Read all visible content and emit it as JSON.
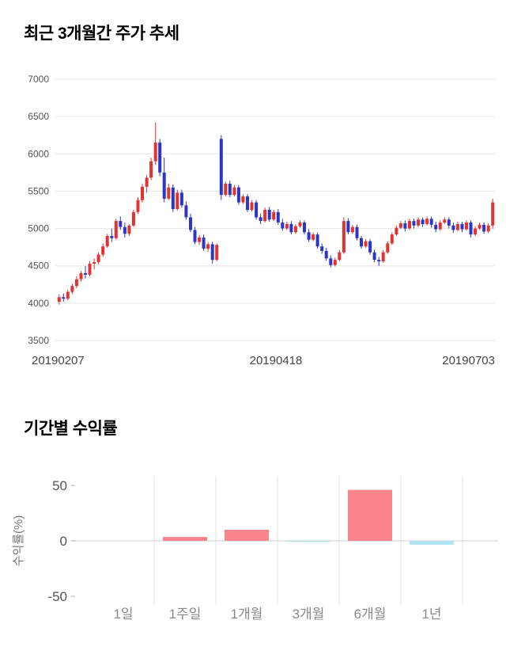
{
  "sections": [
    {
      "title": "최근 3개월간 주가 추세"
    },
    {
      "title": "기간별 수익률"
    }
  ],
  "chart_data": [
    {
      "type": "candlestick",
      "title": "최근 3개월간 주가 추세",
      "ylim": [
        3500,
        7000
      ],
      "yticks": [
        7000,
        6500,
        6000,
        5500,
        5000,
        4500,
        4000,
        3500
      ],
      "x_tick_labels": [
        "20190207",
        "20190418",
        "20190703"
      ],
      "grid": "horizontal",
      "colors": {
        "up": "#e03333",
        "down": "#2d35c4",
        "grid": "#e6e6e6",
        "axis_text": "#555555",
        "x_label_text": "#444444"
      },
      "candles": [
        [
          4020,
          4120,
          3980,
          4080
        ],
        [
          4080,
          4130,
          4020,
          4060
        ],
        [
          4060,
          4180,
          4040,
          4150
        ],
        [
          4150,
          4260,
          4120,
          4230
        ],
        [
          4230,
          4360,
          4200,
          4320
        ],
        [
          4320,
          4430,
          4290,
          4400
        ],
        [
          4400,
          4500,
          4330,
          4380
        ],
        [
          4380,
          4560,
          4360,
          4530
        ],
        [
          4530,
          4600,
          4450,
          4550
        ],
        [
          4550,
          4680,
          4520,
          4650
        ],
        [
          4650,
          4800,
          4620,
          4760
        ],
        [
          4760,
          4930,
          4740,
          4900
        ],
        [
          4900,
          5000,
          4820,
          4870
        ],
        [
          4870,
          5130,
          4850,
          5100
        ],
        [
          5100,
          5160,
          4980,
          5020
        ],
        [
          5020,
          5080,
          4880,
          4930
        ],
        [
          4930,
          5060,
          4900,
          5040
        ],
        [
          5040,
          5250,
          5020,
          5220
        ],
        [
          5220,
          5420,
          5200,
          5380
        ],
        [
          5380,
          5600,
          5350,
          5560
        ],
        [
          5560,
          5720,
          5480,
          5680
        ],
        [
          5680,
          5950,
          5650,
          5900
        ],
        [
          5900,
          6420,
          5850,
          6150
        ],
        [
          6150,
          6200,
          5700,
          5750
        ],
        [
          5750,
          5950,
          5350,
          5400
        ],
        [
          5400,
          5600,
          5380,
          5550
        ],
        [
          5550,
          5590,
          5220,
          5260
        ],
        [
          5260,
          5520,
          5240,
          5480
        ],
        [
          5480,
          5520,
          5280,
          5310
        ],
        [
          5310,
          5360,
          5120,
          5150
        ],
        [
          5150,
          5200,
          4950,
          4980
        ],
        [
          4980,
          5020,
          4790,
          4820
        ],
        [
          4820,
          4910,
          4780,
          4880
        ],
        [
          4880,
          4920,
          4700,
          4730
        ],
        [
          4730,
          4820,
          4690,
          4790
        ],
        [
          4790,
          4820,
          4530,
          4580
        ],
        [
          4580,
          4800,
          4560,
          4780
        ],
        [
          6200,
          6250,
          5380,
          5450
        ],
        [
          5450,
          5630,
          5430,
          5600
        ],
        [
          5600,
          5640,
          5420,
          5450
        ],
        [
          5450,
          5580,
          5430,
          5550
        ],
        [
          5550,
          5580,
          5320,
          5350
        ],
        [
          5350,
          5460,
          5330,
          5430
        ],
        [
          5430,
          5460,
          5220,
          5250
        ],
        [
          5250,
          5380,
          5230,
          5350
        ],
        [
          5350,
          5380,
          5120,
          5150
        ],
        [
          5150,
          5200,
          5060,
          5100
        ],
        [
          5100,
          5280,
          5080,
          5250
        ],
        [
          5250,
          5290,
          5090,
          5120
        ],
        [
          5120,
          5250,
          5100,
          5220
        ],
        [
          5220,
          5260,
          5050,
          5080
        ],
        [
          5080,
          5130,
          4970,
          5000
        ],
        [
          5000,
          5090,
          4980,
          5060
        ],
        [
          5060,
          5100,
          4920,
          4950
        ],
        [
          4950,
          5060,
          4930,
          5030
        ],
        [
          5030,
          5110,
          5010,
          5080
        ],
        [
          5080,
          5110,
          4920,
          4950
        ],
        [
          4950,
          4990,
          4820,
          4850
        ],
        [
          4850,
          4950,
          4830,
          4920
        ],
        [
          4920,
          4950,
          4730,
          4760
        ],
        [
          4760,
          4800,
          4660,
          4700
        ],
        [
          4700,
          4740,
          4570,
          4600
        ],
        [
          4600,
          4640,
          4480,
          4510
        ],
        [
          4510,
          4610,
          4490,
          4580
        ],
        [
          4580,
          4710,
          4560,
          4680
        ],
        [
          4680,
          5150,
          4660,
          5100
        ],
        [
          5100,
          5140,
          4920,
          4950
        ],
        [
          4950,
          5050,
          4930,
          5020
        ],
        [
          5020,
          5050,
          4840,
          4870
        ],
        [
          4870,
          4900,
          4730,
          4760
        ],
        [
          4760,
          4860,
          4740,
          4830
        ],
        [
          4830,
          4860,
          4650,
          4680
        ],
        [
          4680,
          4720,
          4550,
          4580
        ],
        [
          4580,
          4620,
          4500,
          4560
        ],
        [
          4560,
          4710,
          4540,
          4680
        ],
        [
          4680,
          4830,
          4660,
          4800
        ],
        [
          4800,
          4950,
          4780,
          4920
        ],
        [
          4920,
          5040,
          4900,
          5010
        ],
        [
          5010,
          5100,
          4990,
          5070
        ],
        [
          5070,
          5110,
          4960,
          5000
        ],
        [
          5000,
          5130,
          4980,
          5100
        ],
        [
          5100,
          5130,
          5000,
          5040
        ],
        [
          5040,
          5150,
          5020,
          5120
        ],
        [
          5120,
          5150,
          5020,
          5060
        ],
        [
          5060,
          5160,
          5040,
          5130
        ],
        [
          5130,
          5160,
          5010,
          5050
        ],
        [
          5050,
          5090,
          4950,
          4990
        ],
        [
          4990,
          5110,
          4970,
          5080
        ],
        [
          5080,
          5150,
          5060,
          5120
        ],
        [
          5120,
          5150,
          5000,
          5040
        ],
        [
          5040,
          5080,
          4940,
          4980
        ],
        [
          4980,
          5090,
          4960,
          5060
        ],
        [
          5060,
          5090,
          4950,
          4990
        ],
        [
          4990,
          5110,
          4970,
          5080
        ],
        [
          5080,
          5110,
          4880,
          4920
        ],
        [
          4920,
          5030,
          4900,
          5000
        ],
        [
          5000,
          5080,
          4980,
          5050
        ],
        [
          5050,
          5080,
          4930,
          4960
        ],
        [
          4960,
          5070,
          4940,
          5040
        ],
        [
          5040,
          5400,
          5000,
          5350
        ]
      ]
    },
    {
      "type": "bar",
      "title": "기간별 수익률",
      "categories": [
        "1일",
        "1주일",
        "1개월",
        "3개월",
        "6개월",
        "1년"
      ],
      "values": [
        0,
        3.5,
        10,
        -0.7,
        46,
        -3.5
      ],
      "ylabel": "수익률(%)",
      "ylim": [
        -50,
        50
      ],
      "yticks": [
        50,
        0,
        -50
      ],
      "legend": "none",
      "colors": {
        "positive": "#f9848e",
        "negative": "#b0e4f1",
        "grid": "#e3e3e3",
        "zero_line": "#cccccc",
        "tick": "#aaaaaa",
        "axis_text": "#555555",
        "category_text": "#888888",
        "ylabel_text": "#777777"
      }
    }
  ]
}
